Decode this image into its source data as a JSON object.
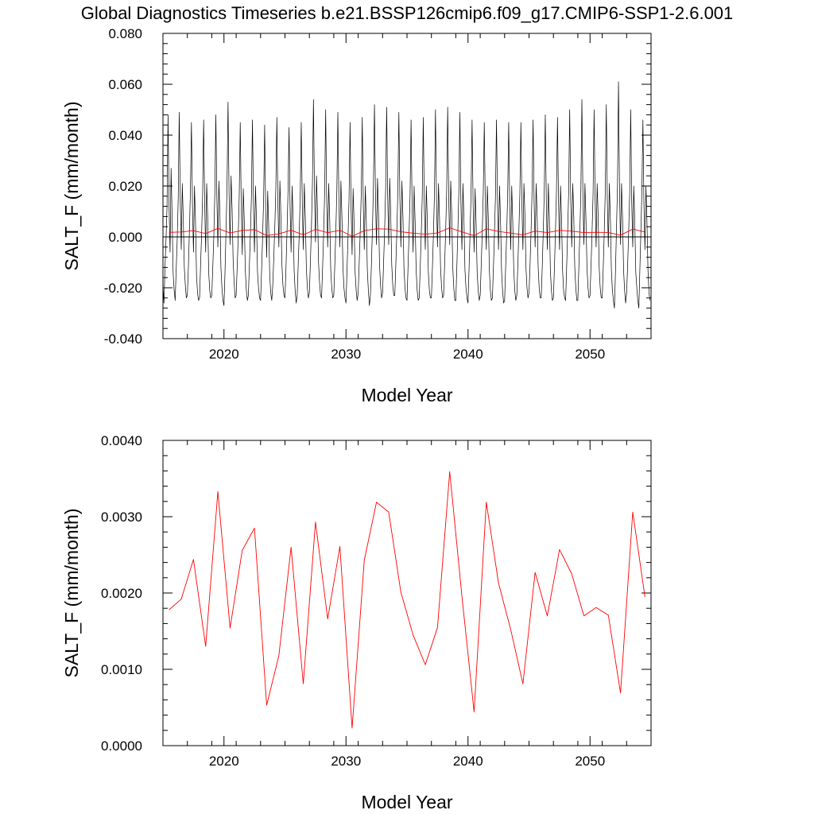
{
  "chart_data": {
    "title": "Global Diagnostics Timeseries b.e21.BSSP126cmip6.f09_g17.CMIP6-SSP1-2.6.001",
    "colors": {
      "monthly": "#000000",
      "annual": "#ff0000",
      "zero_line": "#000000"
    },
    "panels": [
      {
        "type": "line",
        "xlabel": "Model Year",
        "ylabel": "SALT_F (mm/month)",
        "xlim": [
          2015,
          2055
        ],
        "ylim": [
          -0.04,
          0.08
        ],
        "xticks": [
          "2020",
          "2030",
          "2040",
          "2050"
        ],
        "xtick_values": [
          2020,
          2030,
          2040,
          2050
        ],
        "yticks": [
          "-0.040",
          "-0.020",
          "0.000",
          "0.020",
          "0.040",
          "0.060",
          "0.080"
        ],
        "ytick_values": [
          -0.04,
          -0.02,
          0.0,
          0.02,
          0.04,
          0.06,
          0.08
        ],
        "grid": false,
        "zero_line": true,
        "series": [
          {
            "style": "monthly",
            "x_start": 2015.0,
            "x_step_months": 1,
            "values": [
              -0.019,
              -0.026,
              -0.012,
              -0.001,
              0.012,
              0.048,
              0.012,
              -0.006,
              0.027,
              0.008,
              -0.014,
              -0.021,
              -0.025,
              -0.013,
              -0.001,
              0.015,
              0.049,
              0.015,
              -0.005,
              0.021,
              0.007,
              -0.012,
              -0.019,
              -0.024,
              -0.023,
              -0.012,
              0.002,
              0.018,
              0.045,
              0.013,
              -0.006,
              0.02,
              0.006,
              -0.015,
              -0.022,
              -0.025,
              -0.024,
              -0.011,
              0.001,
              0.016,
              0.046,
              0.014,
              -0.006,
              0.021,
              0.007,
              -0.014,
              -0.021,
              -0.024,
              -0.023,
              -0.012,
              0.0,
              0.017,
              0.048,
              0.016,
              -0.004,
              0.022,
              0.009,
              -0.012,
              -0.02,
              -0.025,
              -0.027,
              -0.014,
              0.002,
              0.02,
              0.053,
              0.017,
              -0.003,
              0.024,
              0.011,
              -0.009,
              -0.018,
              -0.024,
              -0.023,
              -0.012,
              0.0,
              0.016,
              0.045,
              0.012,
              -0.007,
              0.019,
              0.006,
              -0.013,
              -0.021,
              -0.025,
              -0.023,
              -0.011,
              0.001,
              0.016,
              0.046,
              0.013,
              -0.006,
              0.02,
              0.006,
              -0.014,
              -0.02,
              -0.024,
              -0.025,
              -0.013,
              0.0,
              0.015,
              0.044,
              0.011,
              -0.008,
              0.018,
              0.004,
              -0.015,
              -0.022,
              -0.025,
              -0.019,
              -0.008,
              0.004,
              0.019,
              0.047,
              0.014,
              -0.004,
              0.022,
              0.008,
              -0.011,
              -0.019,
              -0.023,
              -0.024,
              -0.012,
              0.002,
              0.018,
              0.043,
              0.012,
              -0.006,
              0.02,
              0.007,
              -0.013,
              -0.021,
              -0.026,
              -0.023,
              -0.011,
              0.001,
              0.016,
              0.045,
              0.014,
              -0.005,
              0.021,
              0.008,
              -0.012,
              -0.02,
              -0.024,
              -0.022,
              -0.01,
              0.004,
              0.021,
              0.054,
              0.018,
              -0.002,
              0.024,
              0.01,
              -0.01,
              -0.018,
              -0.023,
              -0.024,
              -0.012,
              0.001,
              0.017,
              0.05,
              0.015,
              -0.004,
              0.021,
              0.007,
              -0.013,
              -0.02,
              -0.024,
              -0.023,
              -0.011,
              0.002,
              0.018,
              0.049,
              0.015,
              -0.004,
              0.022,
              0.008,
              -0.012,
              -0.02,
              -0.024,
              -0.026,
              -0.013,
              0.0,
              0.015,
              0.045,
              0.012,
              -0.007,
              0.019,
              0.005,
              -0.014,
              -0.021,
              -0.025,
              -0.022,
              -0.01,
              0.002,
              0.017,
              0.047,
              0.013,
              -0.005,
              0.02,
              0.006,
              -0.013,
              -0.021,
              -0.027,
              -0.023,
              -0.011,
              0.003,
              0.02,
              0.052,
              0.016,
              -0.003,
              0.023,
              0.009,
              -0.011,
              -0.019,
              -0.024,
              -0.022,
              -0.01,
              0.003,
              0.019,
              0.051,
              0.016,
              -0.003,
              0.023,
              0.009,
              -0.011,
              -0.019,
              -0.023,
              -0.023,
              -0.011,
              0.002,
              0.018,
              0.049,
              0.015,
              -0.004,
              0.022,
              0.008,
              -0.012,
              -0.02,
              -0.024,
              -0.025,
              -0.012,
              0.001,
              0.016,
              0.046,
              0.013,
              -0.006,
              0.02,
              0.006,
              -0.013,
              -0.021,
              -0.025,
              -0.024,
              -0.012,
              0.001,
              0.016,
              0.047,
              0.013,
              -0.005,
              0.02,
              0.006,
              -0.014,
              -0.021,
              -0.024,
              -0.024,
              -0.012,
              0.001,
              0.017,
              0.05,
              0.015,
              -0.004,
              0.021,
              0.007,
              -0.012,
              -0.02,
              -0.024,
              -0.023,
              -0.011,
              0.002,
              0.018,
              0.051,
              0.016,
              -0.003,
              0.022,
              0.009,
              -0.012,
              -0.02,
              -0.025,
              -0.025,
              -0.012,
              0.002,
              0.018,
              0.049,
              0.014,
              -0.005,
              0.021,
              0.007,
              -0.013,
              -0.02,
              -0.024,
              -0.026,
              -0.013,
              0.001,
              0.017,
              0.046,
              0.013,
              -0.006,
              0.019,
              0.005,
              -0.014,
              -0.021,
              -0.025,
              -0.023,
              -0.011,
              0.002,
              0.017,
              0.045,
              0.013,
              -0.005,
              0.02,
              0.007,
              -0.013,
              -0.021,
              -0.025,
              -0.024,
              -0.012,
              0.001,
              0.016,
              0.046,
              0.014,
              -0.005,
              0.02,
              0.006,
              -0.013,
              -0.021,
              -0.026,
              -0.025,
              -0.012,
              0.001,
              0.016,
              0.045,
              0.013,
              -0.005,
              0.02,
              0.006,
              -0.013,
              -0.021,
              -0.025,
              -0.023,
              -0.011,
              0.002,
              0.017,
              0.045,
              0.013,
              -0.005,
              0.021,
              0.008,
              -0.012,
              -0.02,
              -0.024,
              -0.022,
              -0.011,
              0.002,
              0.018,
              0.046,
              0.014,
              -0.004,
              0.021,
              0.008,
              -0.012,
              -0.02,
              -0.024,
              -0.024,
              -0.012,
              0.002,
              0.018,
              0.048,
              0.014,
              -0.005,
              0.021,
              0.007,
              -0.013,
              -0.021,
              -0.025,
              -0.024,
              -0.012,
              0.002,
              0.018,
              0.047,
              0.014,
              -0.005,
              0.02,
              0.007,
              -0.013,
              -0.021,
              -0.024,
              -0.025,
              -0.012,
              0.002,
              0.018,
              0.05,
              0.015,
              -0.004,
              0.021,
              0.008,
              -0.012,
              -0.02,
              -0.025,
              -0.025,
              -0.012,
              0.002,
              0.018,
              0.054,
              0.016,
              -0.003,
              0.021,
              0.007,
              -0.012,
              -0.02,
              -0.024,
              -0.023,
              -0.011,
              0.002,
              0.017,
              0.05,
              0.015,
              -0.004,
              0.021,
              0.008,
              -0.012,
              -0.02,
              -0.024,
              -0.024,
              -0.012,
              0.002,
              0.018,
              0.052,
              0.015,
              -0.004,
              0.021,
              0.007,
              -0.013,
              -0.021,
              -0.025,
              -0.028,
              -0.014,
              0.003,
              0.02,
              0.061,
              0.018,
              -0.003,
              0.021,
              0.007,
              -0.013,
              -0.021,
              -0.026,
              -0.022,
              -0.011,
              0.002,
              0.017,
              0.05,
              0.014,
              -0.004,
              0.02,
              0.006,
              -0.014,
              -0.02,
              -0.025,
              -0.028,
              -0.013,
              0.002,
              0.018,
              0.046,
              0.013,
              -0.005,
              0.02,
              0.006,
              -0.013,
              -0.022,
              -0.025
            ]
          },
          {
            "style": "annual",
            "x_start": 2015.5,
            "x_step_years": 1,
            "values": [
              0.00178,
              0.00192,
              0.00244,
              0.0013,
              0.00333,
              0.00154,
              0.00256,
              0.00285,
              0.00053,
              0.00118,
              0.0026,
              0.00081,
              0.00293,
              0.00166,
              0.00261,
              0.00023,
              0.00243,
              0.00319,
              0.00306,
              0.00201,
              0.00145,
              0.00106,
              0.00155,
              0.00359,
              0.00196,
              0.00044,
              0.00319,
              0.00213,
              0.00152,
              0.00081,
              0.00227,
              0.0017,
              0.00257,
              0.00225,
              0.0017,
              0.00181,
              0.00171,
              0.00069,
              0.00306,
              0.00195
            ]
          }
        ]
      },
      {
        "type": "line",
        "xlabel": "Model Year",
        "ylabel": "SALT_F (mm/month)",
        "xlim": [
          2015,
          2055
        ],
        "ylim": [
          0.0,
          0.004
        ],
        "xticks": [
          "2020",
          "2030",
          "2040",
          "2050"
        ],
        "xtick_values": [
          2020,
          2030,
          2040,
          2050
        ],
        "yticks": [
          "0.0000",
          "0.0010",
          "0.0020",
          "0.0030",
          "0.0040"
        ],
        "ytick_values": [
          0.0,
          0.001,
          0.002,
          0.003,
          0.004
        ],
        "grid": false,
        "zero_line": false,
        "series": [
          {
            "style": "annual",
            "x_start": 2015.5,
            "x_step_years": 1,
            "values": [
              0.00178,
              0.00192,
              0.00244,
              0.0013,
              0.00333,
              0.00154,
              0.00256,
              0.00285,
              0.00053,
              0.00118,
              0.0026,
              0.00081,
              0.00293,
              0.00166,
              0.00261,
              0.00023,
              0.00243,
              0.00319,
              0.00306,
              0.00201,
              0.00145,
              0.00106,
              0.00155,
              0.00359,
              0.00196,
              0.00044,
              0.00319,
              0.00213,
              0.00152,
              0.00081,
              0.00227,
              0.0017,
              0.00257,
              0.00225,
              0.0017,
              0.00181,
              0.00171,
              0.00069,
              0.00306,
              0.00195
            ]
          }
        ]
      }
    ]
  }
}
